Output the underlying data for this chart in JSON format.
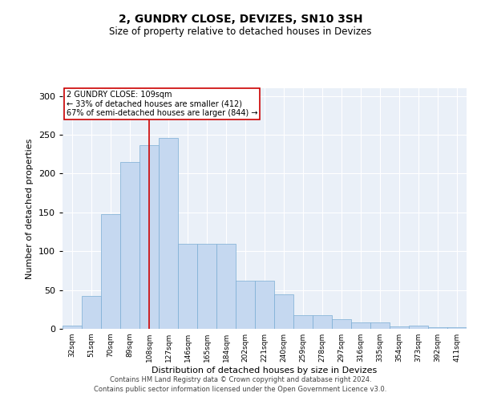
{
  "title1": "2, GUNDRY CLOSE, DEVIZES, SN10 3SH",
  "title2": "Size of property relative to detached houses in Devizes",
  "xlabel": "Distribution of detached houses by size in Devizes",
  "ylabel": "Number of detached properties",
  "categories": [
    "32sqm",
    "51sqm",
    "70sqm",
    "89sqm",
    "108sqm",
    "127sqm",
    "146sqm",
    "165sqm",
    "184sqm",
    "202sqm",
    "221sqm",
    "240sqm",
    "259sqm",
    "278sqm",
    "297sqm",
    "316sqm",
    "335sqm",
    "354sqm",
    "373sqm",
    "392sqm",
    "411sqm"
  ],
  "values": [
    4,
    42,
    148,
    215,
    237,
    246,
    110,
    110,
    110,
    62,
    62,
    44,
    18,
    18,
    12,
    8,
    8,
    3,
    4,
    2,
    2
  ],
  "bar_color": "#c5d8f0",
  "bar_edgecolor": "#7aadd4",
  "property_line_x": 4,
  "property_line_label": "2 GUNDRY CLOSE: 109sqm",
  "annotation_line1": "← 33% of detached houses are smaller (412)",
  "annotation_line2": "67% of semi-detached houses are larger (844) →",
  "annotation_box_color": "#ffffff",
  "annotation_box_edgecolor": "#cc0000",
  "vline_color": "#cc0000",
  "ylim": [
    0,
    310
  ],
  "yticks": [
    0,
    50,
    100,
    150,
    200,
    250,
    300
  ],
  "background_color": "#eaf0f8",
  "footer1": "Contains HM Land Registry data © Crown copyright and database right 2024.",
  "footer2": "Contains public sector information licensed under the Open Government Licence v3.0."
}
